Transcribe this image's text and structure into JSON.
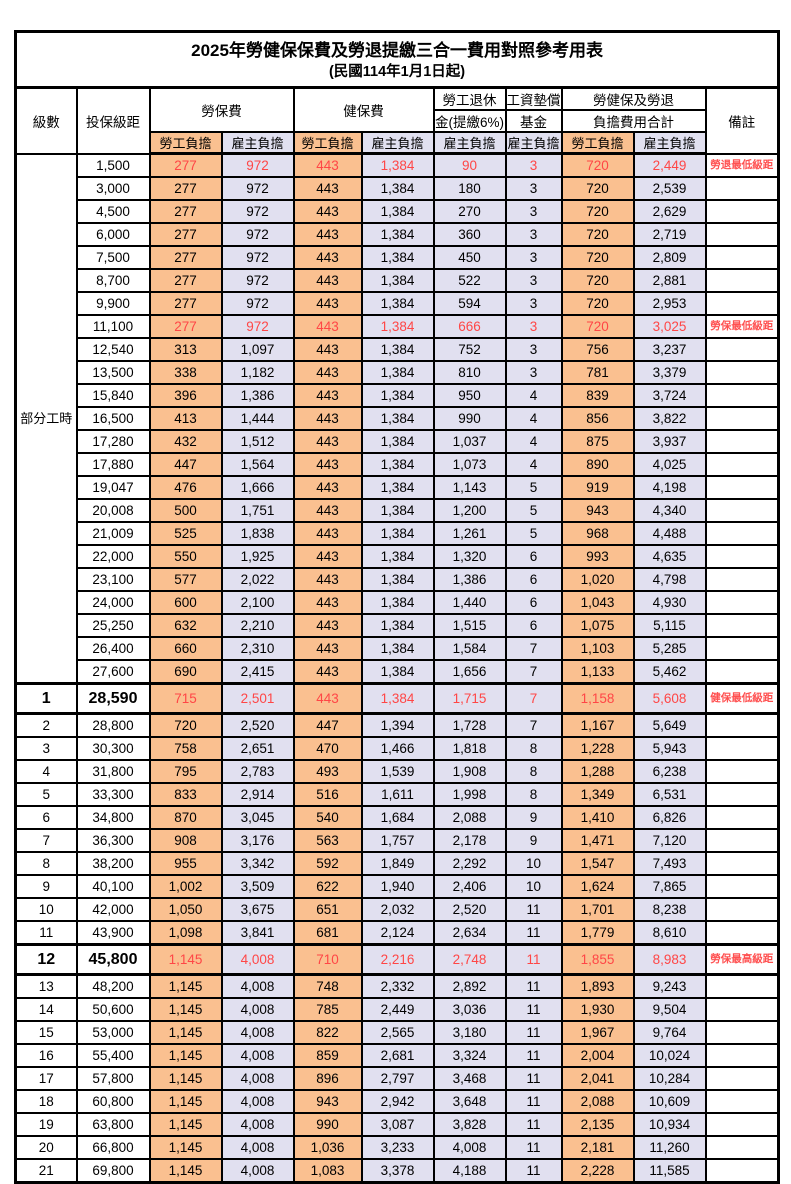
{
  "title": "2025年勞健保保費及勞退提繳三合一費用對照參考用表",
  "subtitle": "(民國114年1月1日起)",
  "colors": {
    "employee_bg": "#FAC090",
    "employer_bg": "#E1E0F0",
    "highlight_red": "#FF4646",
    "remark_red": "#FF5050",
    "border": "#000000"
  },
  "header": {
    "level": "級數",
    "bracket": "投保級距",
    "labor_insurance": "勞保費",
    "health_insurance": "健保費",
    "pension_line1": "勞工退休",
    "pension_line2": "金(提繳6%)",
    "wage_fund_line1": "工資墊償",
    "wage_fund_line2": "基金",
    "total_line1": "勞健保及勞退",
    "total_line2": "負擔費用合計",
    "remarks": "備註",
    "employee": "勞工負擔",
    "employer": "雇主負擔"
  },
  "part_time": {
    "label": "部分工時",
    "rowspan": 23
  },
  "rows": [
    {
      "br": "1,500",
      "v": [
        "277",
        "972",
        "443",
        "1,384",
        "90",
        "3",
        "720",
        "2,449"
      ],
      "rm": "勞退最低級距",
      "red": true
    },
    {
      "br": "3,000",
      "v": [
        "277",
        "972",
        "443",
        "1,384",
        "180",
        "3",
        "720",
        "2,539"
      ],
      "rm": ""
    },
    {
      "br": "4,500",
      "v": [
        "277",
        "972",
        "443",
        "1,384",
        "270",
        "3",
        "720",
        "2,629"
      ],
      "rm": ""
    },
    {
      "br": "6,000",
      "v": [
        "277",
        "972",
        "443",
        "1,384",
        "360",
        "3",
        "720",
        "2,719"
      ],
      "rm": ""
    },
    {
      "br": "7,500",
      "v": [
        "277",
        "972",
        "443",
        "1,384",
        "450",
        "3",
        "720",
        "2,809"
      ],
      "rm": ""
    },
    {
      "br": "8,700",
      "v": [
        "277",
        "972",
        "443",
        "1,384",
        "522",
        "3",
        "720",
        "2,881"
      ],
      "rm": ""
    },
    {
      "br": "9,900",
      "v": [
        "277",
        "972",
        "443",
        "1,384",
        "594",
        "3",
        "720",
        "2,953"
      ],
      "rm": ""
    },
    {
      "br": "11,100",
      "v": [
        "277",
        "972",
        "443",
        "1,384",
        "666",
        "3",
        "720",
        "3,025"
      ],
      "rm": "勞保最低級距",
      "red": true
    },
    {
      "br": "12,540",
      "v": [
        "313",
        "1,097",
        "443",
        "1,384",
        "752",
        "3",
        "756",
        "3,237"
      ],
      "rm": ""
    },
    {
      "br": "13,500",
      "v": [
        "338",
        "1,182",
        "443",
        "1,384",
        "810",
        "3",
        "781",
        "3,379"
      ],
      "rm": ""
    },
    {
      "br": "15,840",
      "v": [
        "396",
        "1,386",
        "443",
        "1,384",
        "950",
        "4",
        "839",
        "3,724"
      ],
      "rm": ""
    },
    {
      "br": "16,500",
      "v": [
        "413",
        "1,444",
        "443",
        "1,384",
        "990",
        "4",
        "856",
        "3,822"
      ],
      "rm": ""
    },
    {
      "br": "17,280",
      "v": [
        "432",
        "1,512",
        "443",
        "1,384",
        "1,037",
        "4",
        "875",
        "3,937"
      ],
      "rm": ""
    },
    {
      "br": "17,880",
      "v": [
        "447",
        "1,564",
        "443",
        "1,384",
        "1,073",
        "4",
        "890",
        "4,025"
      ],
      "rm": ""
    },
    {
      "br": "19,047",
      "v": [
        "476",
        "1,666",
        "443",
        "1,384",
        "1,143",
        "5",
        "919",
        "4,198"
      ],
      "rm": ""
    },
    {
      "br": "20,008",
      "v": [
        "500",
        "1,751",
        "443",
        "1,384",
        "1,200",
        "5",
        "943",
        "4,340"
      ],
      "rm": ""
    },
    {
      "br": "21,009",
      "v": [
        "525",
        "1,838",
        "443",
        "1,384",
        "1,261",
        "5",
        "968",
        "4,488"
      ],
      "rm": ""
    },
    {
      "br": "22,000",
      "v": [
        "550",
        "1,925",
        "443",
        "1,384",
        "1,320",
        "6",
        "993",
        "4,635"
      ],
      "rm": ""
    },
    {
      "br": "23,100",
      "v": [
        "577",
        "2,022",
        "443",
        "1,384",
        "1,386",
        "6",
        "1,020",
        "4,798"
      ],
      "rm": ""
    },
    {
      "br": "24,000",
      "v": [
        "600",
        "2,100",
        "443",
        "1,384",
        "1,440",
        "6",
        "1,043",
        "4,930"
      ],
      "rm": ""
    },
    {
      "br": "25,250",
      "v": [
        "632",
        "2,210",
        "443",
        "1,384",
        "1,515",
        "6",
        "1,075",
        "5,115"
      ],
      "rm": ""
    },
    {
      "br": "26,400",
      "v": [
        "660",
        "2,310",
        "443",
        "1,384",
        "1,584",
        "7",
        "1,103",
        "5,285"
      ],
      "rm": ""
    },
    {
      "br": "27,600",
      "v": [
        "690",
        "2,415",
        "443",
        "1,384",
        "1,656",
        "7",
        "1,133",
        "5,462"
      ],
      "rm": ""
    },
    {
      "lv": "1",
      "br": "28,590",
      "v": [
        "715",
        "2,501",
        "443",
        "1,384",
        "1,715",
        "7",
        "1,158",
        "5,608"
      ],
      "rm": "健保最低級距",
      "red": true,
      "big": true
    },
    {
      "lv": "2",
      "br": "28,800",
      "v": [
        "720",
        "2,520",
        "447",
        "1,394",
        "1,728",
        "7",
        "1,167",
        "5,649"
      ],
      "rm": ""
    },
    {
      "lv": "3",
      "br": "30,300",
      "v": [
        "758",
        "2,651",
        "470",
        "1,466",
        "1,818",
        "8",
        "1,228",
        "5,943"
      ],
      "rm": ""
    },
    {
      "lv": "4",
      "br": "31,800",
      "v": [
        "795",
        "2,783",
        "493",
        "1,539",
        "1,908",
        "8",
        "1,288",
        "6,238"
      ],
      "rm": ""
    },
    {
      "lv": "5",
      "br": "33,300",
      "v": [
        "833",
        "2,914",
        "516",
        "1,611",
        "1,998",
        "8",
        "1,349",
        "6,531"
      ],
      "rm": ""
    },
    {
      "lv": "6",
      "br": "34,800",
      "v": [
        "870",
        "3,045",
        "540",
        "1,684",
        "2,088",
        "9",
        "1,410",
        "6,826"
      ],
      "rm": ""
    },
    {
      "lv": "7",
      "br": "36,300",
      "v": [
        "908",
        "3,176",
        "563",
        "1,757",
        "2,178",
        "9",
        "1,471",
        "7,120"
      ],
      "rm": ""
    },
    {
      "lv": "8",
      "br": "38,200",
      "v": [
        "955",
        "3,342",
        "592",
        "1,849",
        "2,292",
        "10",
        "1,547",
        "7,493"
      ],
      "rm": ""
    },
    {
      "lv": "9",
      "br": "40,100",
      "v": [
        "1,002",
        "3,509",
        "622",
        "1,940",
        "2,406",
        "10",
        "1,624",
        "7,865"
      ],
      "rm": ""
    },
    {
      "lv": "10",
      "br": "42,000",
      "v": [
        "1,050",
        "3,675",
        "651",
        "2,032",
        "2,520",
        "11",
        "1,701",
        "8,238"
      ],
      "rm": ""
    },
    {
      "lv": "11",
      "br": "43,900",
      "v": [
        "1,098",
        "3,841",
        "681",
        "2,124",
        "2,634",
        "11",
        "1,779",
        "8,610"
      ],
      "rm": ""
    },
    {
      "lv": "12",
      "br": "45,800",
      "v": [
        "1,145",
        "4,008",
        "710",
        "2,216",
        "2,748",
        "11",
        "1,855",
        "8,983"
      ],
      "rm": "勞保最高級距",
      "red": true,
      "big": true
    },
    {
      "lv": "13",
      "br": "48,200",
      "v": [
        "1,145",
        "4,008",
        "748",
        "2,332",
        "2,892",
        "11",
        "1,893",
        "9,243"
      ],
      "rm": ""
    },
    {
      "lv": "14",
      "br": "50,600",
      "v": [
        "1,145",
        "4,008",
        "785",
        "2,449",
        "3,036",
        "11",
        "1,930",
        "9,504"
      ],
      "rm": ""
    },
    {
      "lv": "15",
      "br": "53,000",
      "v": [
        "1,145",
        "4,008",
        "822",
        "2,565",
        "3,180",
        "11",
        "1,967",
        "9,764"
      ],
      "rm": ""
    },
    {
      "lv": "16",
      "br": "55,400",
      "v": [
        "1,145",
        "4,008",
        "859",
        "2,681",
        "3,324",
        "11",
        "2,004",
        "10,024"
      ],
      "rm": ""
    },
    {
      "lv": "17",
      "br": "57,800",
      "v": [
        "1,145",
        "4,008",
        "896",
        "2,797",
        "3,468",
        "11",
        "2,041",
        "10,284"
      ],
      "rm": ""
    },
    {
      "lv": "18",
      "br": "60,800",
      "v": [
        "1,145",
        "4,008",
        "943",
        "2,942",
        "3,648",
        "11",
        "2,088",
        "10,609"
      ],
      "rm": ""
    },
    {
      "lv": "19",
      "br": "63,800",
      "v": [
        "1,145",
        "4,008",
        "990",
        "3,087",
        "3,828",
        "11",
        "2,135",
        "10,934"
      ],
      "rm": ""
    },
    {
      "lv": "20",
      "br": "66,800",
      "v": [
        "1,145",
        "4,008",
        "1,036",
        "3,233",
        "4,008",
        "11",
        "2,181",
        "11,260"
      ],
      "rm": ""
    },
    {
      "lv": "21",
      "br": "69,800",
      "v": [
        "1,145",
        "4,008",
        "1,083",
        "3,378",
        "4,188",
        "11",
        "2,228",
        "11,585"
      ],
      "rm": ""
    }
  ]
}
